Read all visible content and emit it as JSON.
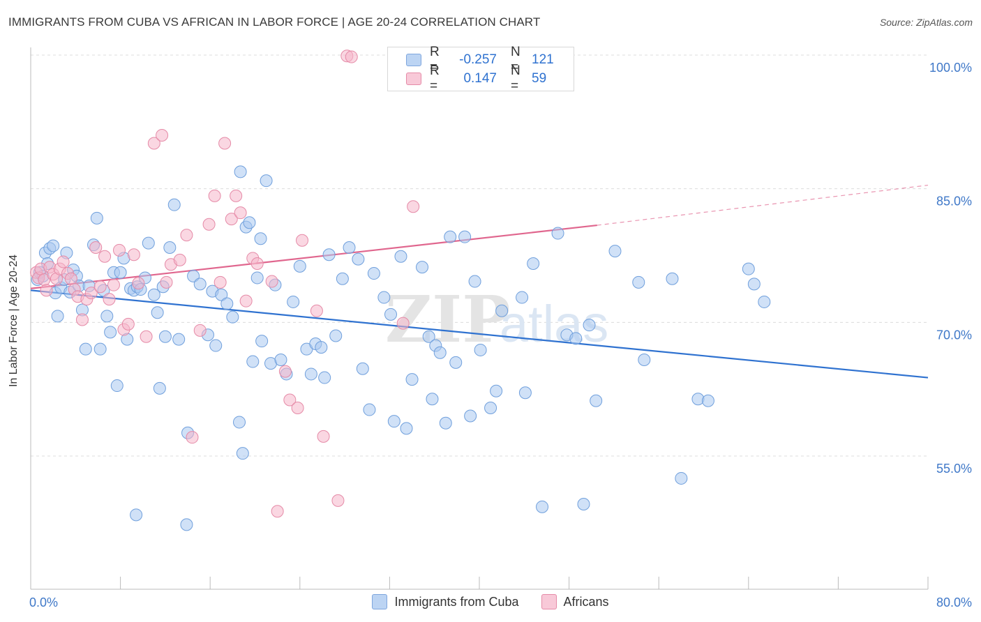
{
  "header": {
    "title": "IMMIGRANTS FROM CUBA VS AFRICAN IN LABOR FORCE | AGE 20-24 CORRELATION CHART",
    "source": "Source: ZipAtlas.com"
  },
  "watermark": {
    "zip": "ZIP",
    "atlas": "atlas"
  },
  "legend": {
    "rows": [
      {
        "r_label": "R =",
        "r_value": "-0.257",
        "n_label": "N =",
        "n_value": "121",
        "color": "#a9c8f0"
      },
      {
        "r_label": "R =",
        "r_value": "0.147",
        "n_label": "N =",
        "n_value": "59",
        "color": "#f5b7cb"
      }
    ]
  },
  "chart_data": {
    "type": "scatter",
    "title": "IMMIGRANTS FROM CUBA VS AFRICAN IN LABOR FORCE | AGE 20-24 CORRELATION CHART",
    "xlabel": "",
    "ylabel": "In Labor Force | Age 20-24",
    "xlim": [
      0,
      80
    ],
    "ylim": [
      41,
      102
    ],
    "x_tick_labels": [
      "0.0%",
      "80.0%"
    ],
    "y_ticks": [
      55,
      70,
      85,
      100
    ],
    "y_tick_labels": [
      "55.0%",
      "70.0%",
      "85.0%",
      "100.0%"
    ],
    "grid": true,
    "legend_position": "top-center",
    "series": [
      {
        "name": "Immigrants from Cuba",
        "color": "#a9c8f0",
        "stroke": "#6f9fdc",
        "line_color": "#2f72d0",
        "trend": {
          "x0": 0,
          "y0": 73.6,
          "x1": 80,
          "y1": 63.8
        },
        "points": [
          [
            0.6,
            74.8
          ],
          [
            0.8,
            75.6
          ],
          [
            1.1,
            75.2
          ],
          [
            1.3,
            77.8
          ],
          [
            1.5,
            76.6
          ],
          [
            1.7,
            78.3
          ],
          [
            2.0,
            78.6
          ],
          [
            2.2,
            73.3
          ],
          [
            2.4,
            70.7
          ],
          [
            2.7,
            73.9
          ],
          [
            3.0,
            74.8
          ],
          [
            3.2,
            77.8
          ],
          [
            3.5,
            73.4
          ],
          [
            3.8,
            75.9
          ],
          [
            4.1,
            75.2
          ],
          [
            4.3,
            74.1
          ],
          [
            4.6,
            71.4
          ],
          [
            4.9,
            67.0
          ],
          [
            5.2,
            74.1
          ],
          [
            5.6,
            78.7
          ],
          [
            5.9,
            81.7
          ],
          [
            6.2,
            67.0
          ],
          [
            6.5,
            73.6
          ],
          [
            6.8,
            70.7
          ],
          [
            7.1,
            68.9
          ],
          [
            7.4,
            75.6
          ],
          [
            7.7,
            62.9
          ],
          [
            8.0,
            75.6
          ],
          [
            8.3,
            77.2
          ],
          [
            8.6,
            68.1
          ],
          [
            8.9,
            73.8
          ],
          [
            9.2,
            73.6
          ],
          [
            9.5,
            74.0
          ],
          [
            9.8,
            73.7
          ],
          [
            10.2,
            75.0
          ],
          [
            10.5,
            78.9
          ],
          [
            11.0,
            73.1
          ],
          [
            11.3,
            71.1
          ],
          [
            11.5,
            62.6
          ],
          [
            11.8,
            74.0
          ],
          [
            12.0,
            68.4
          ],
          [
            12.4,
            78.4
          ],
          [
            12.8,
            83.2
          ],
          [
            14.0,
            57.6
          ],
          [
            13.2,
            68.1
          ],
          [
            14.5,
            75.2
          ],
          [
            15.1,
            74.3
          ],
          [
            15.8,
            68.6
          ],
          [
            16.2,
            73.5
          ],
          [
            16.5,
            67.4
          ],
          [
            17.0,
            73.1
          ],
          [
            17.5,
            72.1
          ],
          [
            18.0,
            70.6
          ],
          [
            18.6,
            58.8
          ],
          [
            18.9,
            55.3
          ],
          [
            19.2,
            80.7
          ],
          [
            19.5,
            81.2
          ],
          [
            19.8,
            65.6
          ],
          [
            20.2,
            75.0
          ],
          [
            20.6,
            67.9
          ],
          [
            21.0,
            85.9
          ],
          [
            21.4,
            65.4
          ],
          [
            21.8,
            74.2
          ],
          [
            22.3,
            65.8
          ],
          [
            22.8,
            64.2
          ],
          [
            23.4,
            72.3
          ],
          [
            24.0,
            76.3
          ],
          [
            24.6,
            67.0
          ],
          [
            25.0,
            64.2
          ],
          [
            25.4,
            67.6
          ],
          [
            25.9,
            67.2
          ],
          [
            26.2,
            63.8
          ],
          [
            26.6,
            77.6
          ],
          [
            27.2,
            68.5
          ],
          [
            27.8,
            74.9
          ],
          [
            28.4,
            78.4
          ],
          [
            29.2,
            77.1
          ],
          [
            29.6,
            64.8
          ],
          [
            30.6,
            75.5
          ],
          [
            30.2,
            60.2
          ],
          [
            31.5,
            72.8
          ],
          [
            32.1,
            70.9
          ],
          [
            32.4,
            58.9
          ],
          [
            33.0,
            77.4
          ],
          [
            33.5,
            58.1
          ],
          [
            34.0,
            63.6
          ],
          [
            34.9,
            76.2
          ],
          [
            35.5,
            68.4
          ],
          [
            35.8,
            61.4
          ],
          [
            36.1,
            67.4
          ],
          [
            36.5,
            66.6
          ],
          [
            37.0,
            58.7
          ],
          [
            37.4,
            79.6
          ],
          [
            38.7,
            79.6
          ],
          [
            37.9,
            65.5
          ],
          [
            39.2,
            59.5
          ],
          [
            39.6,
            74.6
          ],
          [
            40.1,
            66.9
          ],
          [
            41.0,
            60.4
          ],
          [
            41.5,
            62.3
          ],
          [
            42.0,
            71.3
          ],
          [
            43.8,
            72.8
          ],
          [
            44.1,
            62.1
          ],
          [
            44.8,
            76.6
          ],
          [
            45.6,
            49.3
          ],
          [
            47.0,
            80.0
          ],
          [
            47.8,
            68.6
          ],
          [
            48.6,
            68.2
          ],
          [
            49.3,
            49.6
          ],
          [
            49.8,
            69.7
          ],
          [
            50.4,
            61.2
          ],
          [
            52.1,
            78.0
          ],
          [
            54.2,
            74.5
          ],
          [
            54.7,
            65.8
          ],
          [
            57.2,
            74.9
          ],
          [
            58.0,
            52.5
          ],
          [
            59.5,
            61.4
          ],
          [
            60.4,
            61.2
          ],
          [
            64.0,
            76.0
          ],
          [
            64.5,
            74.3
          ],
          [
            65.4,
            72.3
          ],
          [
            20.5,
            79.4
          ],
          [
            9.4,
            48.4
          ],
          [
            13.9,
            47.3
          ],
          [
            18.7,
            86.9
          ]
        ]
      },
      {
        "name": "Africans",
        "color": "#f5b7cb",
        "stroke": "#e58aa7",
        "line_color": "#e0668e",
        "trend": {
          "x0": 0,
          "y0": 73.8,
          "x1": 50.5,
          "y1": 80.9
        },
        "dashed_extension": {
          "x0": 50.5,
          "y0": 80.9,
          "x1": 80,
          "y1": 85.4
        },
        "points": [
          [
            0.5,
            75.6
          ],
          [
            0.7,
            75.0
          ],
          [
            0.9,
            76.0
          ],
          [
            1.2,
            74.8
          ],
          [
            1.4,
            73.6
          ],
          [
            1.7,
            76.2
          ],
          [
            2.0,
            75.4
          ],
          [
            2.3,
            74.9
          ],
          [
            2.6,
            76.0
          ],
          [
            2.9,
            76.8
          ],
          [
            3.3,
            75.5
          ],
          [
            3.6,
            74.9
          ],
          [
            3.9,
            73.7
          ],
          [
            4.2,
            72.9
          ],
          [
            4.6,
            70.3
          ],
          [
            5.0,
            72.6
          ],
          [
            5.4,
            73.3
          ],
          [
            5.8,
            78.4
          ],
          [
            6.2,
            74.0
          ],
          [
            6.6,
            77.4
          ],
          [
            7.0,
            72.6
          ],
          [
            7.4,
            74.2
          ],
          [
            7.9,
            78.1
          ],
          [
            8.3,
            69.2
          ],
          [
            8.7,
            69.8
          ],
          [
            9.2,
            77.6
          ],
          [
            9.6,
            74.4
          ],
          [
            10.3,
            68.4
          ],
          [
            11.0,
            90.1
          ],
          [
            11.7,
            91.0
          ],
          [
            12.1,
            74.5
          ],
          [
            12.5,
            76.5
          ],
          [
            13.3,
            77.0
          ],
          [
            13.9,
            79.8
          ],
          [
            14.4,
            57.1
          ],
          [
            15.1,
            69.1
          ],
          [
            15.9,
            81.0
          ],
          [
            16.4,
            84.2
          ],
          [
            16.9,
            74.5
          ],
          [
            17.3,
            90.1
          ],
          [
            17.9,
            81.6
          ],
          [
            18.3,
            84.2
          ],
          [
            18.7,
            82.3
          ],
          [
            19.2,
            72.4
          ],
          [
            19.8,
            77.2
          ],
          [
            20.2,
            76.6
          ],
          [
            21.5,
            74.6
          ],
          [
            22.0,
            48.8
          ],
          [
            22.7,
            64.5
          ],
          [
            23.1,
            61.3
          ],
          [
            23.8,
            60.4
          ],
          [
            24.2,
            79.2
          ],
          [
            25.5,
            71.3
          ],
          [
            26.1,
            57.2
          ],
          [
            27.4,
            50.0
          ],
          [
            28.2,
            99.9
          ],
          [
            28.6,
            99.8
          ],
          [
            33.2,
            69.9
          ],
          [
            34.1,
            83.0
          ]
        ]
      }
    ]
  },
  "x_axis_labels": {
    "min": "0.0%",
    "max": "80.0%"
  },
  "bottom_legend": {
    "items": [
      {
        "label": "Immigrants from Cuba",
        "color": "#a9c8f0"
      },
      {
        "label": "Africans",
        "color": "#f5b7cb"
      }
    ]
  }
}
